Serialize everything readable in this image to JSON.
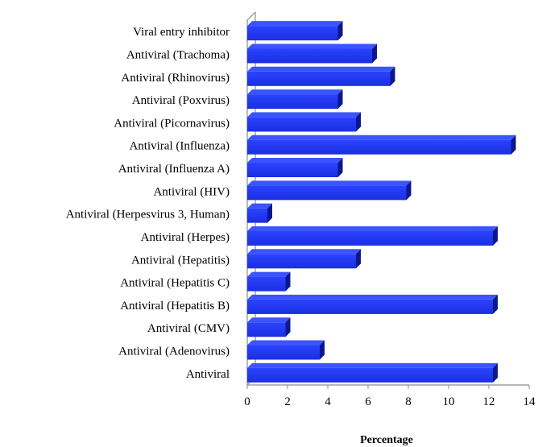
{
  "chart_data": {
    "type": "bar",
    "orientation": "horizontal",
    "categories": [
      "Viral entry inhibitor",
      "Antiviral (Trachoma)",
      "Antiviral (Rhinovirus)",
      "Antiviral (Poxvirus)",
      "Antiviral (Picornavirus)",
      "Antiviral (Influenza)",
      "Antiviral (Influenza A)",
      "Antiviral (HIV)",
      "Antiviral (Herpesvirus 3, Human)",
      "Antiviral (Herpes)",
      "Antiviral (Hepatitis)",
      "Antiviral (Hepatitis C)",
      "Antiviral (Hepatitis B)",
      "Antiviral (CMV)",
      "Antiviral (Adenovirus)",
      "Antiviral"
    ],
    "values": [
      4.5,
      6.2,
      7.1,
      4.5,
      5.4,
      13.1,
      4.5,
      7.9,
      1.0,
      12.2,
      5.4,
      1.9,
      12.2,
      1.9,
      3.6,
      12.2
    ],
    "xlabel": "Percentage",
    "ylabel": "",
    "xlim": [
      0,
      14
    ],
    "xticks": [
      "0",
      "2",
      "4",
      "6",
      "8",
      "10",
      "12",
      "14"
    ],
    "grid": false,
    "legend": "none",
    "bar_color": "#1a2fe0",
    "bar_dark_color": "#0c178c"
  }
}
